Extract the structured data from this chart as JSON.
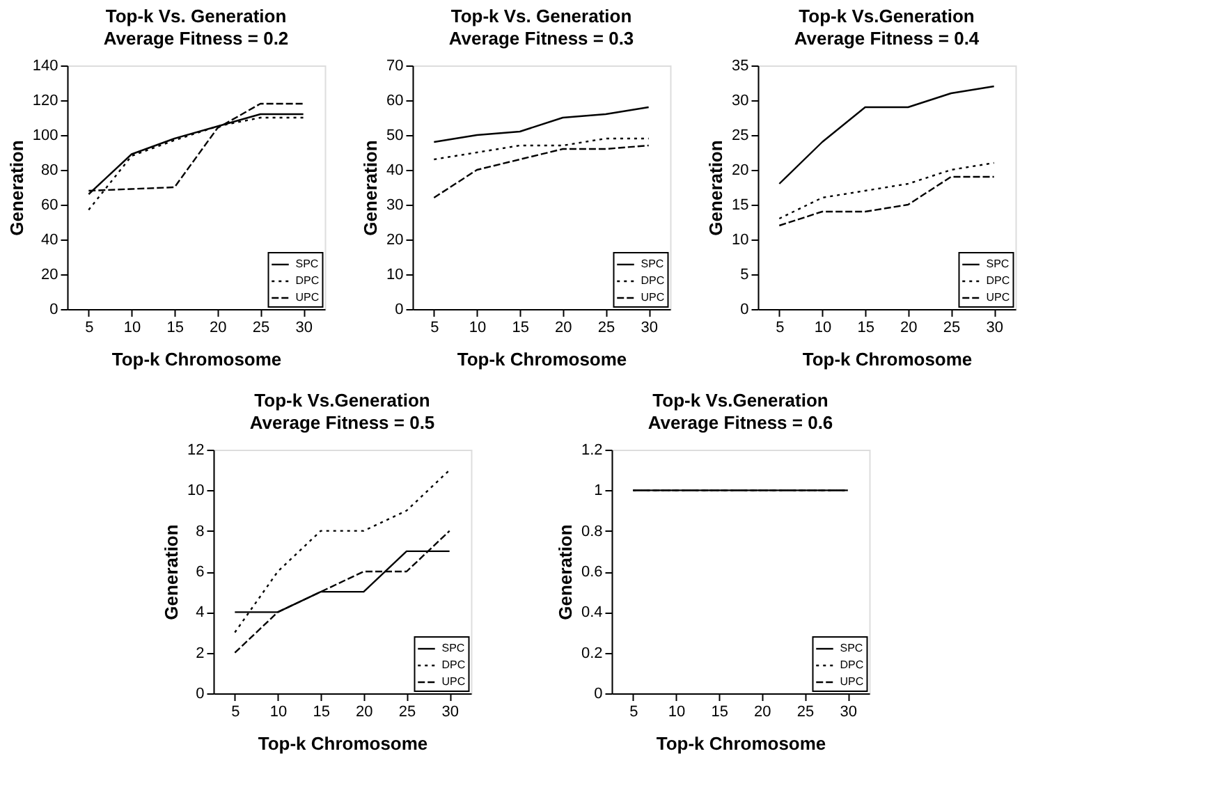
{
  "chart_data": [
    {
      "type": "line",
      "title": "Top-k Vs. Generation",
      "subtitle": "Average Fitness = 0.2",
      "xlabel": "Top-k Chromosome",
      "ylabel": "Generation",
      "categories": [
        "5",
        "10",
        "15",
        "20",
        "25",
        "30"
      ],
      "ylim": [
        0,
        140
      ],
      "yticks": [
        0,
        20,
        40,
        60,
        80,
        100,
        120,
        140
      ],
      "grid": false,
      "legend": "bottom right",
      "marker": "none",
      "series": [
        {
          "name": "SPC",
          "color": "#000000",
          "line_style": "solid",
          "values": [
            66,
            89,
            98,
            105,
            112,
            112
          ]
        },
        {
          "name": "DPC",
          "color": "#000000",
          "line_style": "dotted",
          "values": [
            57,
            88,
            97,
            105,
            110,
            110
          ]
        },
        {
          "name": "UPC",
          "color": "#000000",
          "line_style": "dashed",
          "values": [
            68,
            69,
            70,
            104,
            118,
            118
          ]
        }
      ]
    },
    {
      "type": "line",
      "title": "Top-k Vs. Generation",
      "subtitle": "Average Fitness = 0.3",
      "xlabel": "Top-k Chromosome",
      "ylabel": "Generation",
      "categories": [
        "5",
        "10",
        "15",
        "20",
        "25",
        "30"
      ],
      "ylim": [
        0,
        70
      ],
      "yticks": [
        0,
        10,
        20,
        30,
        40,
        50,
        60,
        70
      ],
      "grid": false,
      "legend": "bottom right",
      "marker": "none",
      "series": [
        {
          "name": "SPC",
          "color": "#000000",
          "line_style": "solid",
          "values": [
            48,
            50,
            51,
            55,
            56,
            58
          ]
        },
        {
          "name": "DPC",
          "color": "#000000",
          "line_style": "dotted",
          "values": [
            43,
            45,
            47,
            47,
            49,
            49
          ]
        },
        {
          "name": "UPC",
          "color": "#000000",
          "line_style": "dashed",
          "values": [
            32,
            40,
            43,
            46,
            46,
            47
          ]
        }
      ]
    },
    {
      "type": "line",
      "title": "Top-k Vs.Generation",
      "subtitle": "Average Fitness = 0.4",
      "xlabel": "Top-k Chromosome",
      "ylabel": "Generation",
      "categories": [
        "5",
        "10",
        "15",
        "20",
        "25",
        "30"
      ],
      "ylim": [
        0,
        35
      ],
      "yticks": [
        0,
        5,
        10,
        15,
        20,
        25,
        30,
        35
      ],
      "grid": false,
      "legend": "bottom right",
      "marker": "none",
      "series": [
        {
          "name": "SPC",
          "color": "#000000",
          "line_style": "solid",
          "values": [
            18,
            24,
            29,
            29,
            31,
            32
          ]
        },
        {
          "name": "DPC",
          "color": "#000000",
          "line_style": "dotted",
          "values": [
            13,
            16,
            17,
            18,
            20,
            21
          ]
        },
        {
          "name": "UPC",
          "color": "#000000",
          "line_style": "dashed",
          "values": [
            12,
            14,
            14,
            15,
            19,
            19
          ]
        }
      ]
    },
    {
      "type": "line",
      "title": "Top-k Vs.Generation",
      "subtitle": "Average Fitness = 0.5",
      "xlabel": "Top-k Chromosome",
      "ylabel": "Generation",
      "categories": [
        "5",
        "10",
        "15",
        "20",
        "25",
        "30"
      ],
      "ylim": [
        0,
        12
      ],
      "yticks": [
        0,
        2,
        4,
        6,
        8,
        10,
        12
      ],
      "grid": false,
      "legend": "bottom right",
      "marker": "none",
      "series": [
        {
          "name": "SPC",
          "color": "#000000",
          "line_style": "solid",
          "values": [
            4,
            4,
            5,
            5,
            7,
            7
          ]
        },
        {
          "name": "DPC",
          "color": "#000000",
          "line_style": "dotted",
          "values": [
            3,
            6,
            8,
            8,
            9,
            11
          ]
        },
        {
          "name": "UPC",
          "color": "#000000",
          "line_style": "dashed",
          "values": [
            2,
            4,
            5,
            6,
            6,
            8
          ]
        }
      ]
    },
    {
      "type": "line",
      "title": "Top-k Vs.Generation",
      "subtitle": "Average Fitness = 0.6",
      "xlabel": "Top-k Chromosome",
      "ylabel": "Generation",
      "categories": [
        "5",
        "10",
        "15",
        "20",
        "25",
        "30"
      ],
      "ylim": [
        0,
        1.2
      ],
      "yticks": [
        0,
        0.2,
        0.4,
        0.6,
        0.8,
        1,
        1.2
      ],
      "grid": false,
      "legend": "bottom right",
      "marker": "none",
      "series": [
        {
          "name": "SPC",
          "color": "#000000",
          "line_style": "solid",
          "values": [
            1,
            1,
            1,
            1,
            1,
            1
          ]
        },
        {
          "name": "DPC",
          "color": "#000000",
          "line_style": "dotted",
          "values": [
            1,
            1,
            1,
            1,
            1,
            1
          ]
        },
        {
          "name": "UPC",
          "color": "#000000",
          "line_style": "dashed",
          "values": [
            1,
            1,
            1,
            1,
            1,
            1
          ]
        }
      ]
    }
  ]
}
